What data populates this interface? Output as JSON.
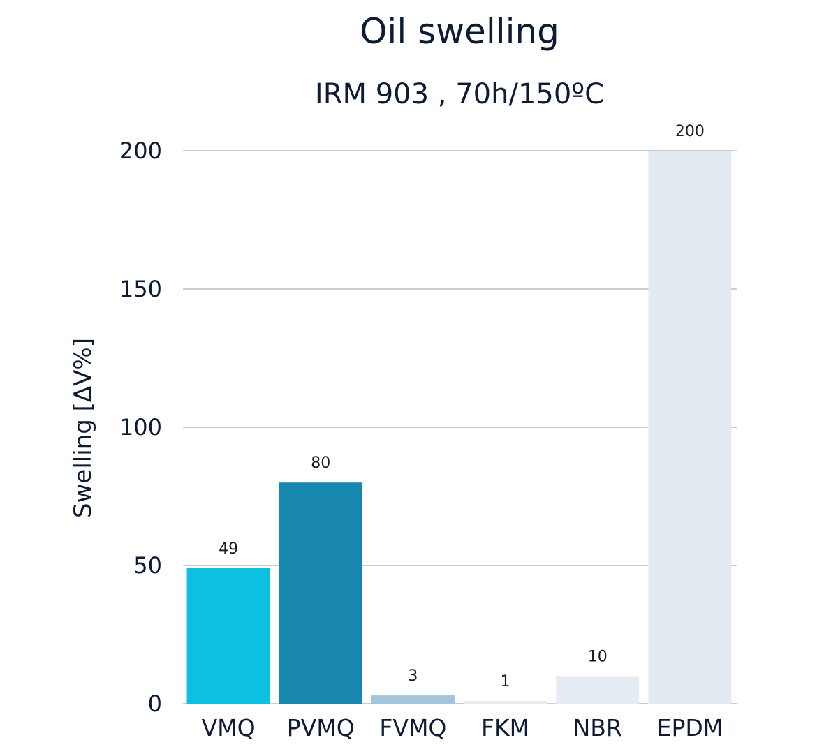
{
  "chart_data": {
    "type": "bar",
    "title": "Oil swelling",
    "subtitle": "IRM 903 , 70h/150ºC",
    "ylabel": "Swelling [ΔV%]",
    "xlabel": "",
    "ylim": [
      0,
      200
    ],
    "yticks": [
      0,
      50,
      100,
      150,
      200
    ],
    "grid": true,
    "categories": [
      "VMQ",
      "PVMQ",
      "FVMQ",
      "FKM",
      "NBR",
      "EPDM"
    ],
    "values": [
      49,
      80,
      3,
      1,
      10,
      200
    ],
    "data_labels": [
      "49",
      "80",
      "3",
      "1",
      "10",
      "200"
    ],
    "colors": [
      "#0dbfe0",
      "#1787b0",
      "#a4c3dc",
      "#e6ecf4",
      "#e6ecf4",
      "#e3eaf2"
    ]
  }
}
